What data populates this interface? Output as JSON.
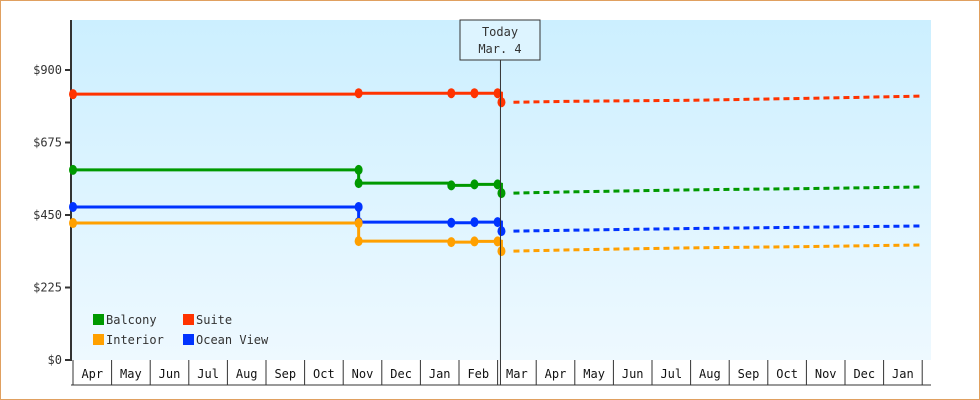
{
  "chart_data": {
    "type": "line",
    "title": "",
    "xlabel": "",
    "ylabel": "",
    "ylim": [
      0,
      1000
    ],
    "y_ticks": [
      "$0",
      "$225",
      "$450",
      "$675",
      "$900"
    ],
    "y_tick_values": [
      0,
      225,
      450,
      675,
      900
    ],
    "x_categories": [
      "Apr",
      "May",
      "Jun",
      "Jul",
      "Aug",
      "Sep",
      "Oct",
      "Nov",
      "Dec",
      "Jan",
      "Feb",
      "Mar",
      "Apr",
      "May",
      "Jun",
      "Jul",
      "Aug",
      "Sep",
      "Oct",
      "Nov",
      "Dec",
      "Jan"
    ],
    "today_marker": {
      "label_line1": "Today",
      "label_line2": "Mar. 4",
      "month_index": 11.1
    },
    "legend": [
      {
        "name": "Balcony",
        "color": "#009900"
      },
      {
        "name": "Suite",
        "color": "#ff3300"
      },
      {
        "name": "Interior",
        "color": "#ffa000"
      },
      {
        "name": "Ocean View",
        "color": "#0033ff"
      }
    ],
    "series": [
      {
        "name": "Suite",
        "color": "#ff3300",
        "historical": [
          [
            0,
            825
          ],
          [
            7.4,
            828
          ],
          [
            9.8,
            828
          ],
          [
            10.4,
            828
          ],
          [
            11.0,
            828
          ],
          [
            11.1,
            800
          ]
        ],
        "projected": [
          [
            11.1,
            800
          ],
          [
            13,
            803
          ],
          [
            16,
            806
          ],
          [
            19,
            812
          ],
          [
            22,
            819
          ]
        ]
      },
      {
        "name": "Balcony",
        "color": "#009900",
        "historical": [
          [
            0,
            590
          ],
          [
            7.4,
            590
          ],
          [
            7.4,
            549
          ],
          [
            9.8,
            542
          ],
          [
            10.4,
            545
          ],
          [
            11.0,
            545
          ],
          [
            11.1,
            518
          ]
        ],
        "projected": [
          [
            11.1,
            518
          ],
          [
            13,
            522
          ],
          [
            16,
            528
          ],
          [
            19,
            532
          ],
          [
            22,
            537
          ]
        ]
      },
      {
        "name": "Ocean View",
        "color": "#0033ff",
        "historical": [
          [
            0,
            475
          ],
          [
            7.4,
            475
          ],
          [
            7.4,
            428
          ],
          [
            9.8,
            426
          ],
          [
            10.4,
            428
          ],
          [
            11.0,
            428
          ],
          [
            11.1,
            400
          ]
        ],
        "projected": [
          [
            11.1,
            400
          ],
          [
            13,
            403
          ],
          [
            16,
            408
          ],
          [
            19,
            412
          ],
          [
            22,
            416
          ]
        ]
      },
      {
        "name": "Interior",
        "color": "#ffa000",
        "historical": [
          [
            0,
            425
          ],
          [
            7.4,
            425
          ],
          [
            7.4,
            369
          ],
          [
            9.8,
            366
          ],
          [
            10.4,
            368
          ],
          [
            11.0,
            368
          ],
          [
            11.1,
            338
          ]
        ],
        "projected": [
          [
            11.1,
            338
          ],
          [
            13,
            342
          ],
          [
            16,
            348
          ],
          [
            19,
            352
          ],
          [
            22,
            357
          ]
        ]
      }
    ]
  }
}
